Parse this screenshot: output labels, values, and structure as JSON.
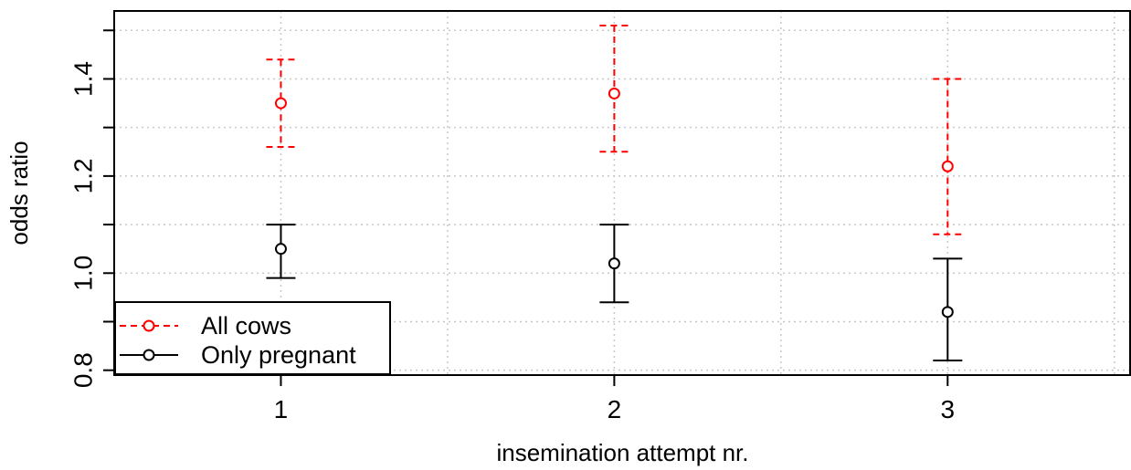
{
  "chart_data": {
    "type": "scatter",
    "title": "",
    "xlabel": "insemination attempt nr.",
    "ylabel": "odds ratio",
    "x_ticks": [
      "1",
      "2",
      "3"
    ],
    "y_ticks": [
      "0.8",
      "1.0",
      "1.2",
      "1.4"
    ],
    "xlim": [
      0.5,
      3.55
    ],
    "ylim": [
      0.79,
      1.54
    ],
    "grid": true,
    "legend_position": "bottom-left",
    "series": [
      {
        "name": "All cows",
        "color": "#ff0000",
        "line_style": "dashed",
        "marker": "open-circle",
        "points": [
          {
            "x": 1,
            "y": 1.35,
            "lower": 1.26,
            "upper": 1.44
          },
          {
            "x": 2,
            "y": 1.37,
            "lower": 1.25,
            "upper": 1.51
          },
          {
            "x": 3,
            "y": 1.22,
            "lower": 1.08,
            "upper": 1.4
          }
        ]
      },
      {
        "name": "Only pregnant",
        "color": "#000000",
        "line_style": "solid",
        "marker": "open-circle",
        "points": [
          {
            "x": 1,
            "y": 1.05,
            "lower": 0.99,
            "upper": 1.1
          },
          {
            "x": 2,
            "y": 1.02,
            "lower": 0.94,
            "upper": 1.1
          },
          {
            "x": 3,
            "y": 0.92,
            "lower": 0.82,
            "upper": 1.03
          }
        ]
      }
    ]
  }
}
